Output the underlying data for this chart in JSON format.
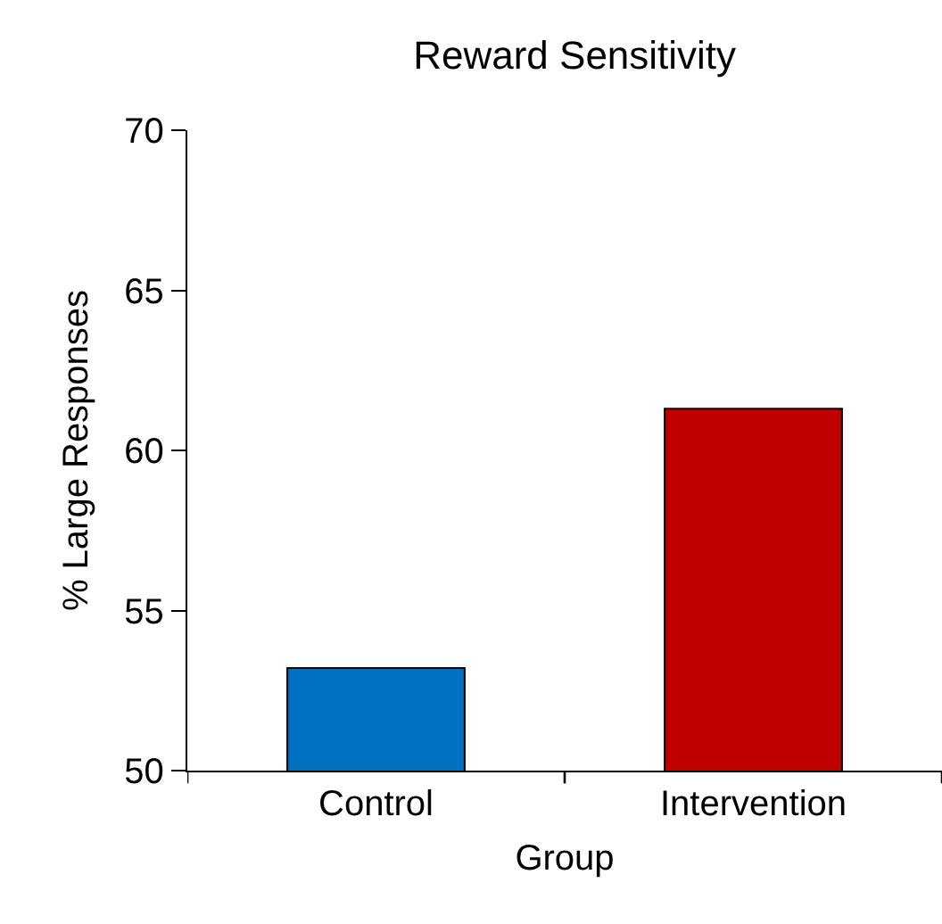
{
  "chart_data": {
    "type": "bar",
    "title": "Reward Sensitivity",
    "xlabel": "Group",
    "ylabel": "% Large Responses",
    "categories": [
      "Control",
      "Intervention"
    ],
    "values": [
      53.2,
      61.3
    ],
    "colors": [
      "#0070c0",
      "#c00000"
    ],
    "ylim": [
      50,
      70
    ],
    "yticks": [
      50,
      55,
      60,
      65,
      70
    ],
    "grid": false
  }
}
